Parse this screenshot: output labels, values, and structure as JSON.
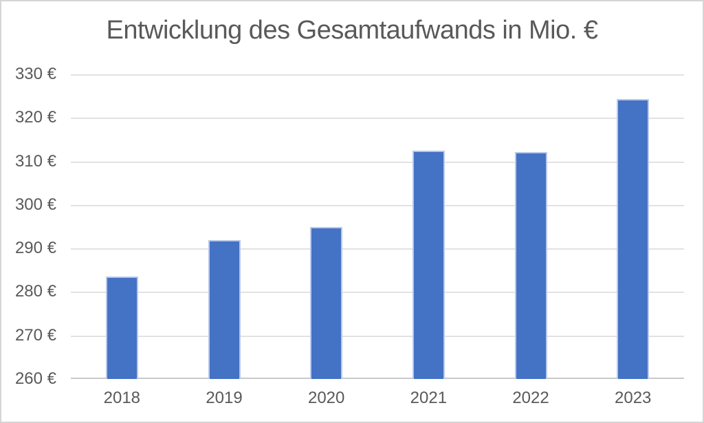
{
  "style": {
    "background": "#ffffff",
    "frame_border_color": "#d5d5d5",
    "text_color": "#595959",
    "gridline_color": "#e2e2e2",
    "axis_line_color": "#c9c9c9",
    "bar_color": "#4472C4",
    "bar_edge_color": "#b9c9ea"
  },
  "chart_data": {
    "type": "bar",
    "title": "Entwicklung des Gesamtaufwands in Mio. €",
    "categories": [
      "2018",
      "2019",
      "2020",
      "2021",
      "2022",
      "2023"
    ],
    "values": [
      283.5,
      292,
      295,
      312.4,
      312.2,
      324.3
    ],
    "xlabel": "",
    "ylabel": "",
    "ylim": [
      260,
      330
    ],
    "ytick_step": 10,
    "ytick_labels": [
      "260 €",
      "270 €",
      "280 €",
      "290 €",
      "300 €",
      "310 €",
      "320 €",
      "330 €"
    ],
    "unit": "Mio. €",
    "grid": true,
    "legend": false,
    "series_color": "#4472C4"
  }
}
